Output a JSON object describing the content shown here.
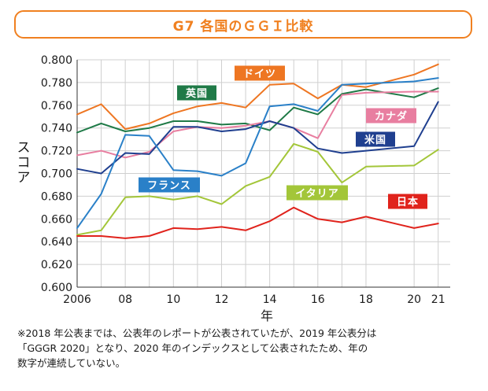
{
  "chart_data": {
    "type": "line",
    "title": "G7 各国のＧＧＩ比較",
    "xlabel": "年",
    "ylabel": "スコア",
    "ylim": [
      0.6,
      0.8
    ],
    "ytick_values": [
      0.6,
      0.62,
      0.64,
      0.66,
      0.68,
      0.7,
      0.72,
      0.74,
      0.76,
      0.78,
      0.8
    ],
    "ytick_labels": [
      "0.600",
      "0.620",
      "0.640",
      "0.660",
      "0.680",
      "0.700",
      "0.720",
      "0.740",
      "0.760",
      "0.780",
      "0.800"
    ],
    "x": [
      2006,
      2007,
      2008,
      2009,
      2010,
      2011,
      2012,
      2013,
      2014,
      2015,
      2016,
      2017,
      2018,
      2020,
      2021
    ],
    "xtick_labels": [
      "2006",
      "",
      "08",
      "",
      "10",
      "",
      "12",
      "",
      "14",
      "",
      "16",
      "",
      "18",
      "20",
      "21"
    ],
    "grid": true,
    "series": [
      {
        "name": "ドイツ",
        "color": "#ee7622",
        "values": [
          0.752,
          0.761,
          0.739,
          0.744,
          0.753,
          0.759,
          0.762,
          0.758,
          0.778,
          0.779,
          0.766,
          0.778,
          0.776,
          0.787,
          0.796
        ]
      },
      {
        "name": "英国",
        "color": "#1f7a47",
        "values": [
          0.736,
          0.744,
          0.737,
          0.74,
          0.746,
          0.746,
          0.743,
          0.744,
          0.738,
          0.758,
          0.752,
          0.77,
          0.774,
          0.767,
          0.775
        ]
      },
      {
        "name": "カナダ",
        "color": "#e87ea0",
        "values": [
          0.716,
          0.72,
          0.714,
          0.719,
          0.737,
          0.741,
          0.74,
          0.742,
          0.746,
          0.74,
          0.731,
          0.769,
          0.771,
          0.772,
          0.772
        ]
      },
      {
        "name": "米国",
        "color": "#1f3f8f",
        "values": [
          0.704,
          0.7,
          0.718,
          0.717,
          0.741,
          0.741,
          0.737,
          0.739,
          0.746,
          0.74,
          0.722,
          0.718,
          0.72,
          0.724,
          0.763
        ]
      },
      {
        "name": "フランス",
        "color": "#2a80c8",
        "values": [
          0.652,
          0.682,
          0.734,
          0.733,
          0.703,
          0.702,
          0.698,
          0.709,
          0.759,
          0.761,
          0.755,
          0.778,
          0.779,
          0.781,
          0.784
        ]
      },
      {
        "name": "イタリア",
        "color": "#a3c639",
        "values": [
          0.646,
          0.65,
          0.679,
          0.68,
          0.677,
          0.68,
          0.673,
          0.689,
          0.697,
          0.726,
          0.719,
          0.692,
          0.706,
          0.707,
          0.721
        ]
      },
      {
        "name": "日本",
        "color": "#e0231c",
        "values": [
          0.645,
          0.645,
          0.643,
          0.645,
          0.652,
          0.651,
          0.653,
          0.65,
          0.658,
          0.67,
          0.66,
          0.657,
          0.662,
          0.652,
          0.656
        ]
      }
    ]
  },
  "note": {
    "lines": [
      "※2018 年公表までは、公表年のレポートが公表されていたが、2019 年公表分は",
      "「GGGR 2020」となり、2020 年のインデックスとして公表されたため、年の",
      "数字が連続していない。"
    ]
  }
}
